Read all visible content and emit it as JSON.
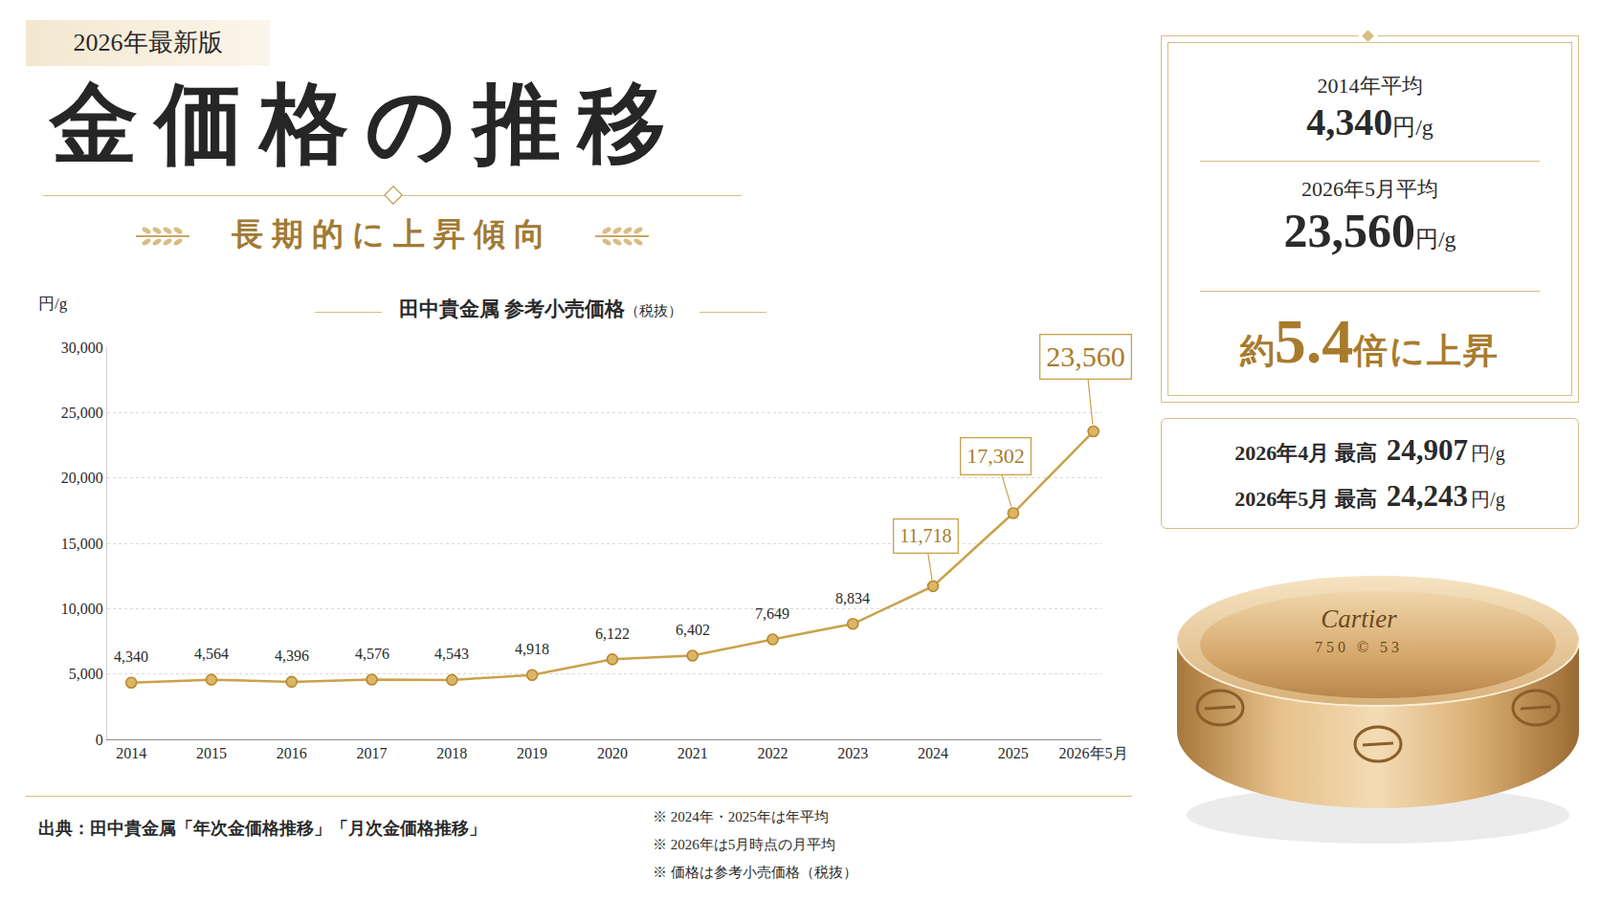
{
  "header": {
    "badge": "2026年最新版",
    "title": "金価格の推移",
    "subtitle": "長期的に上昇傾向"
  },
  "chart_data": {
    "type": "line",
    "title": "田中貴金属 参考小売価格",
    "subtitle": "（税抜）",
    "ylabel": "円/g",
    "categories": [
      "2014",
      "2015",
      "2016",
      "2017",
      "2018",
      "2019",
      "2020",
      "2021",
      "2022",
      "2023",
      "2024",
      "2025",
      "2026年5月"
    ],
    "values": [
      4340,
      4564,
      4396,
      4576,
      4543,
      4918,
      6122,
      6402,
      7649,
      8834,
      11718,
      17302,
      23560
    ],
    "value_labels": [
      "4,340",
      "4,564",
      "4,396",
      "4,576",
      "4,543",
      "4,918",
      "6,122",
      "6,402",
      "7,649",
      "8,834",
      "11,718",
      "17,302",
      "23,560"
    ],
    "color": "#c9a24a",
    "marker": "circle",
    "ylim": [
      0,
      30000
    ],
    "yticks": [
      0,
      {
        "value": 5000,
        "label": "5,000"
      },
      {
        "value": 10000,
        "label": "10,000"
      },
      {
        "value": 15000,
        "label": "15,000"
      },
      {
        "value": 20000,
        "label": "20,000"
      },
      {
        "value": 25000,
        "label": "25,000"
      },
      {
        "value": 30000,
        "label": "30,000"
      }
    ],
    "grid": true,
    "data_labels": true
  },
  "summary": {
    "items": [
      {
        "label": "2014年平均",
        "value": "4,340",
        "unit": "円/g"
      },
      {
        "label": "2026年5月平均",
        "value": "23,560",
        "unit": "円/g"
      }
    ],
    "ratio": {
      "prefix": "約",
      "value": "5.4",
      "suffix": "倍に上昇"
    }
  },
  "highs": [
    {
      "label": "2026年4月 最高",
      "value": "24,907",
      "unit": "円/g"
    },
    {
      "label": "2026年5月 最高",
      "value": "24,243",
      "unit": "円/g"
    }
  ],
  "footer": {
    "source": "出典：田中貴金属「年次金価格推移」「月次金価格推移」",
    "notes": [
      "※ 2024年・2025年は年平均",
      "※ 2026年は5月時点の月平均",
      "※ 価格は参考小売価格（税抜）"
    ]
  },
  "ring": {
    "brand": "Cartier",
    "marks": [
      "750",
      "©",
      "53"
    ]
  }
}
